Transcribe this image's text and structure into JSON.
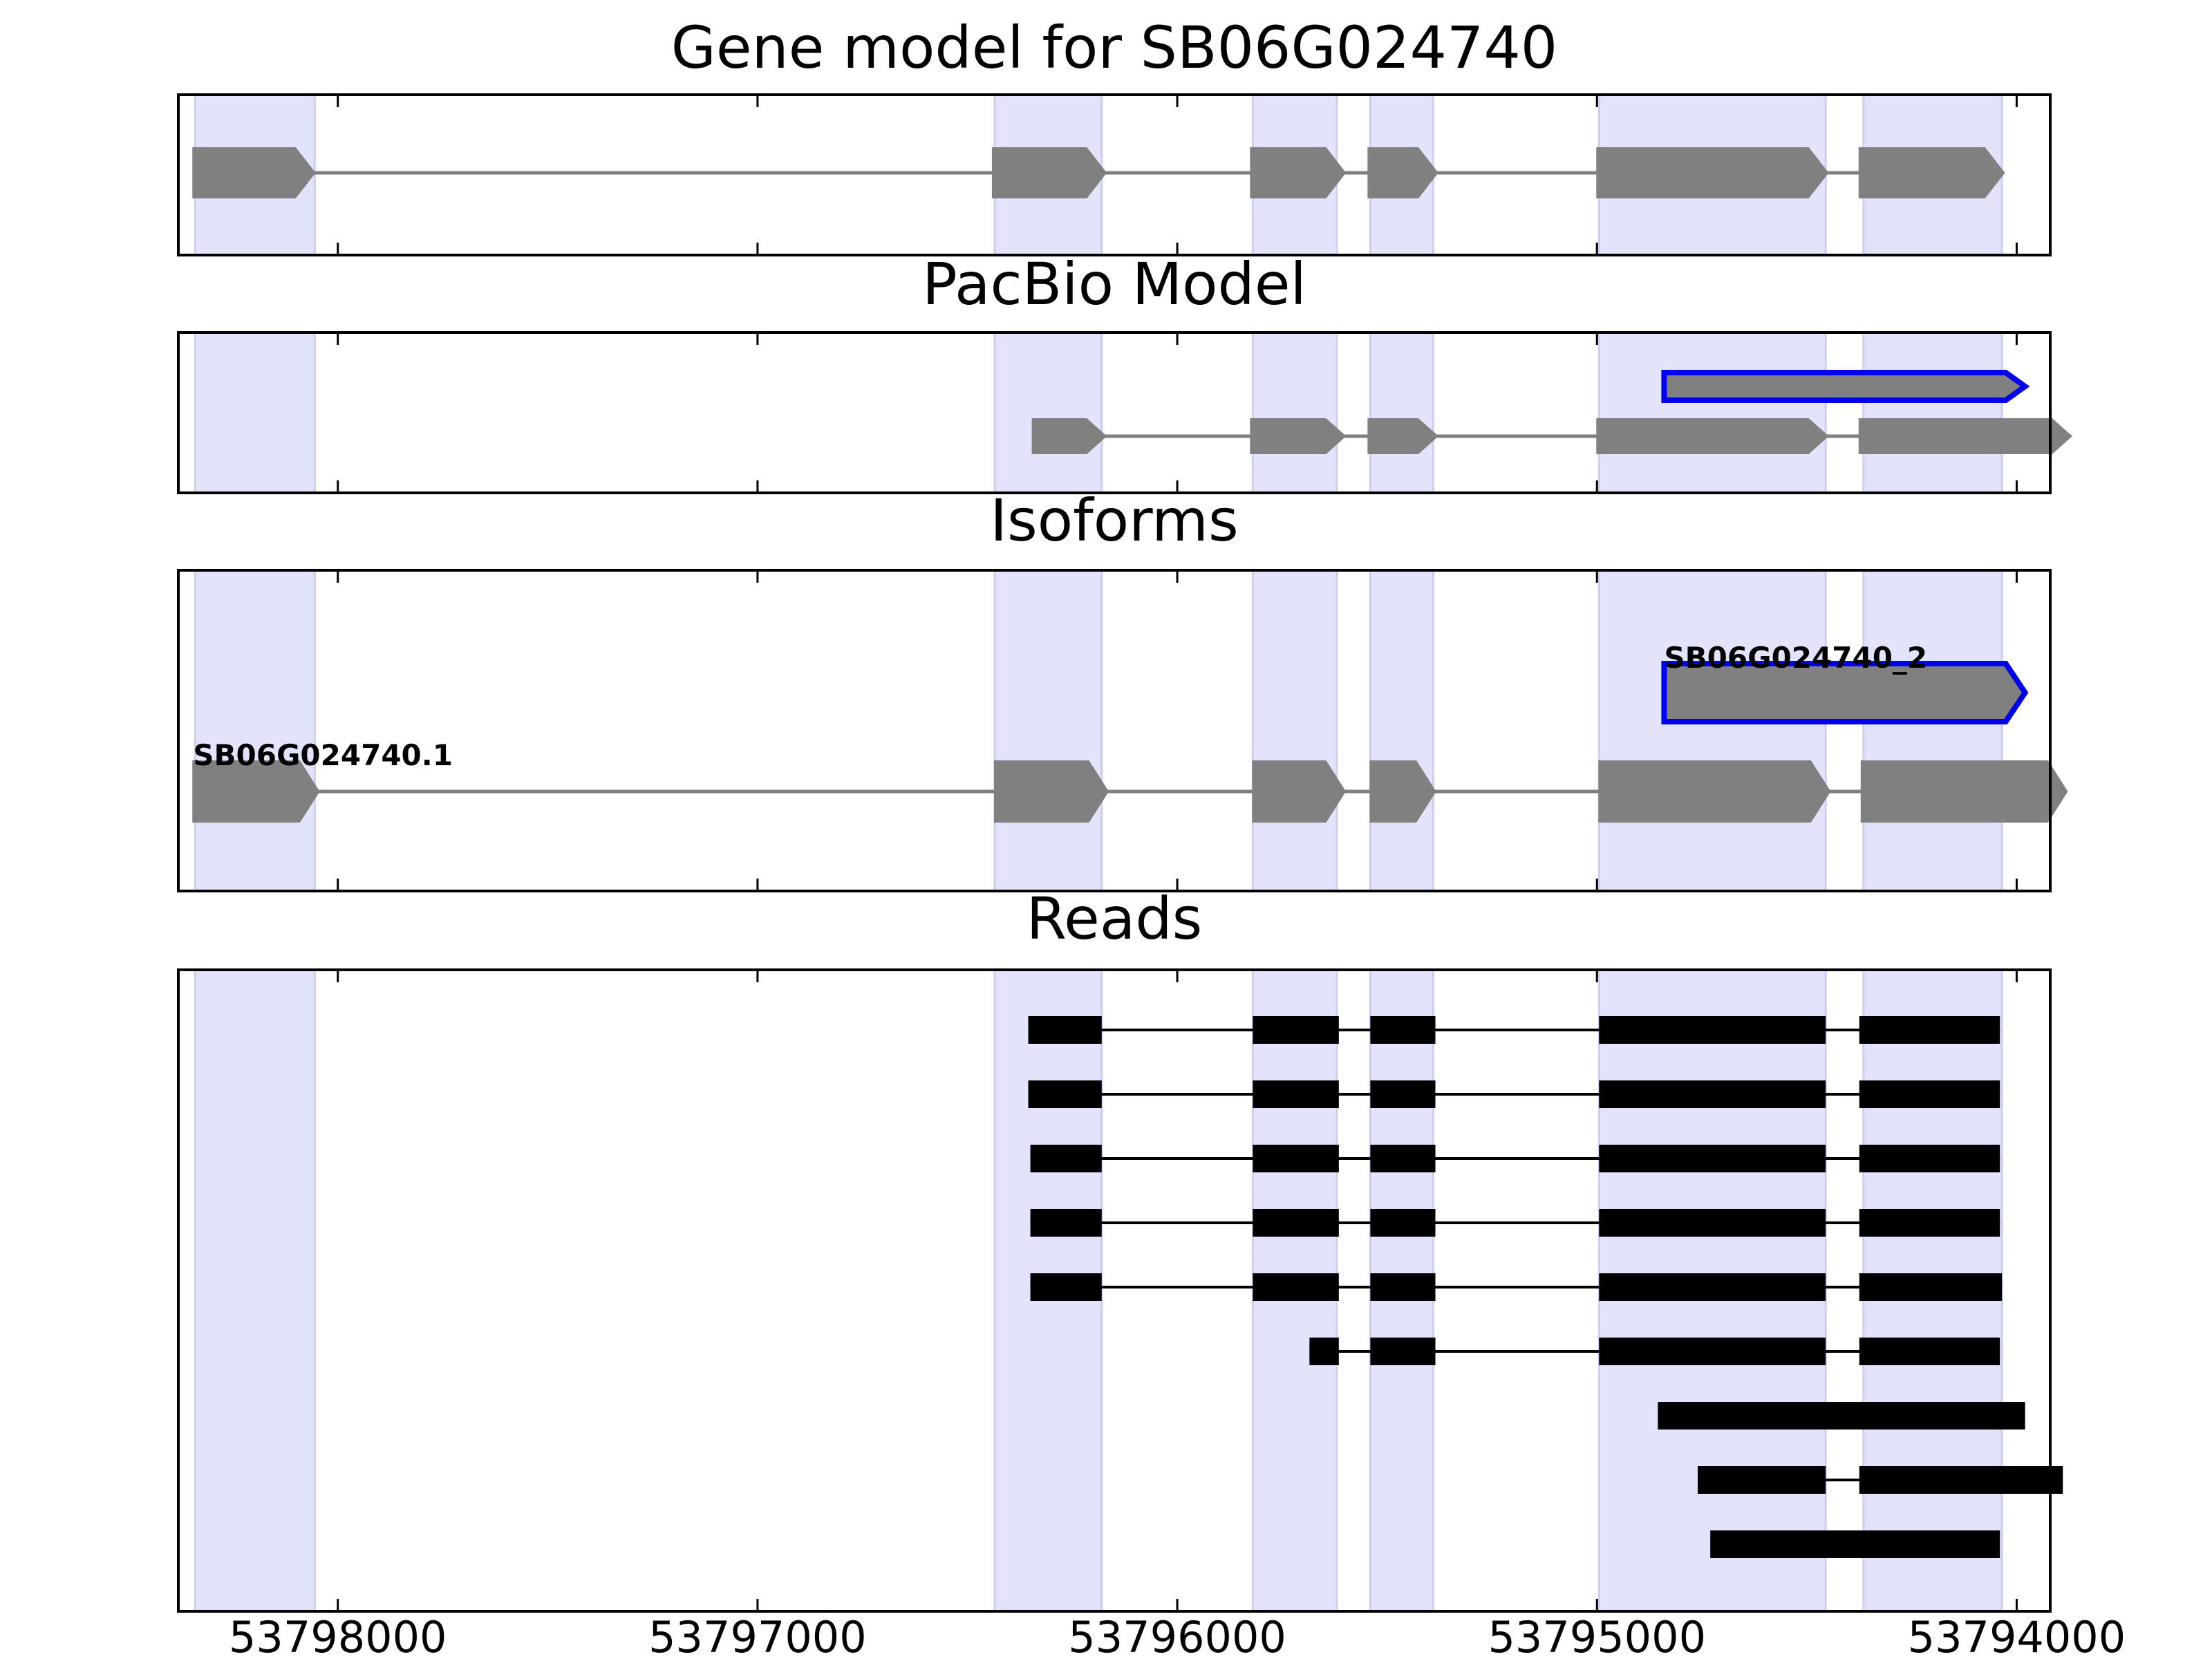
{
  "panels": [
    {
      "title": "Gene model for SB06G024740"
    },
    {
      "title": "PacBio Model"
    },
    {
      "title": "Isoforms"
    },
    {
      "title": "Reads"
    }
  ],
  "chart_data": {
    "type": "gene_structure",
    "xlim": [
      53798380,
      53793920
    ],
    "x_axis_reversed": true,
    "xticks": [
      53798000,
      53797000,
      53796000,
      53795000,
      53794000
    ],
    "xtick_labels": [
      "53798000",
      "53797000",
      "53796000",
      "53795000",
      "53794000"
    ],
    "exon_highlights": [
      [
        53798340,
        53798055
      ],
      [
        53796435,
        53796180
      ],
      [
        53795820,
        53795620
      ],
      [
        53795540,
        53795390
      ],
      [
        53794995,
        53794455
      ],
      [
        53794365,
        53794035
      ]
    ],
    "gene_model": {
      "exons": [
        [
          53798345,
          53798055
        ],
        [
          53796440,
          53796170
        ],
        [
          53795825,
          53795600
        ],
        [
          53795545,
          53795380
        ],
        [
          53795000,
          53794450
        ],
        [
          53794375,
          53794030
        ]
      ]
    },
    "pacbio_model": [
      {
        "highlighted": true,
        "exons": [
          [
            53794840,
            53793980
          ]
        ]
      },
      {
        "highlighted": false,
        "exons": [
          [
            53796345,
            53796170
          ],
          [
            53795825,
            53795600
          ],
          [
            53795545,
            53795380
          ],
          [
            53795000,
            53794450
          ],
          [
            53794375,
            53793870
          ]
        ]
      }
    ],
    "isoforms": [
      {
        "label": "SB06G024740_2",
        "highlighted": true,
        "exons": [
          [
            53794840,
            53793980
          ]
        ]
      },
      {
        "label": "SB06G024740.1",
        "highlighted": false,
        "exons": [
          [
            53798345,
            53798045
          ],
          [
            53796435,
            53796165
          ],
          [
            53795820,
            53795600
          ],
          [
            53795540,
            53795385
          ],
          [
            53794995,
            53794445
          ],
          [
            53794370,
            53793880
          ]
        ]
      }
    ],
    "reads": [
      {
        "exons": [
          [
            53796355,
            53796180
          ],
          [
            53795820,
            53795615
          ],
          [
            53795540,
            53795385
          ],
          [
            53794995,
            53794455
          ],
          [
            53794375,
            53794040
          ]
        ]
      },
      {
        "exons": [
          [
            53796355,
            53796180
          ],
          [
            53795820,
            53795615
          ],
          [
            53795540,
            53795385
          ],
          [
            53794995,
            53794455
          ],
          [
            53794375,
            53794040
          ]
        ]
      },
      {
        "exons": [
          [
            53796350,
            53796180
          ],
          [
            53795820,
            53795615
          ],
          [
            53795540,
            53795385
          ],
          [
            53794995,
            53794455
          ],
          [
            53794375,
            53794040
          ]
        ]
      },
      {
        "exons": [
          [
            53796350,
            53796180
          ],
          [
            53795820,
            53795615
          ],
          [
            53795540,
            53795385
          ],
          [
            53794995,
            53794455
          ],
          [
            53794375,
            53794040
          ]
        ]
      },
      {
        "exons": [
          [
            53796350,
            53796180
          ],
          [
            53795820,
            53795615
          ],
          [
            53795540,
            53795385
          ],
          [
            53794995,
            53794455
          ],
          [
            53794375,
            53794035
          ]
        ]
      },
      {
        "exons": [
          [
            53795685,
            53795615
          ],
          [
            53795540,
            53795385
          ],
          [
            53794995,
            53794455
          ],
          [
            53794375,
            53794040
          ]
        ]
      },
      {
        "exons": [
          [
            53794855,
            53793980
          ]
        ]
      },
      {
        "exons": [
          [
            53794760,
            53794455
          ],
          [
            53794375,
            53793890
          ]
        ]
      },
      {
        "exons": [
          [
            53794730,
            53794040
          ]
        ]
      }
    ],
    "colors": {
      "highlight": "#e3e3fc",
      "exon": "#808080",
      "intron": "#808080",
      "selected_outline": "#0000ee",
      "read": "#000000",
      "axes": "#000000"
    }
  }
}
